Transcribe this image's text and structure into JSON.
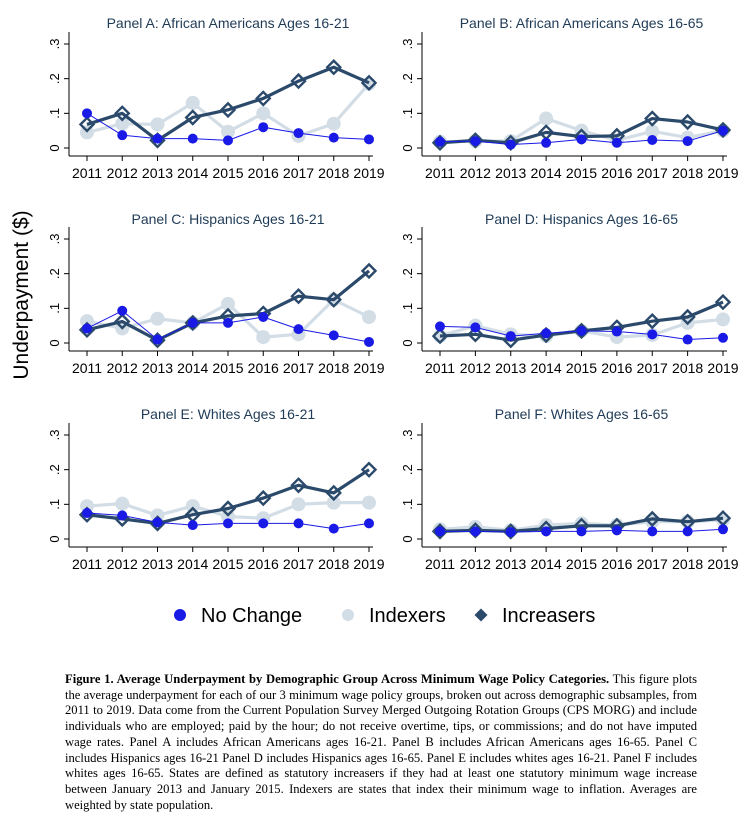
{
  "y_axis_label": "Underpayment ($)",
  "legend": [
    {
      "label": "No Change",
      "color": "#1a1ae6",
      "marker": "circle"
    },
    {
      "label": "Indexers",
      "color": "#d3dde6",
      "marker": "circle"
    },
    {
      "label": "Increasers",
      "color": "#2b4a6b",
      "marker": "diamond"
    }
  ],
  "caption": {
    "title": "Figure 1. Average Underpayment by Demographic Group Across Minimum Wage Policy Categories.",
    "body": "This figure plots the average underpayment for each of our 3 minimum wage policy groups, broken out across demographic subsamples, from 2011 to 2019. Data come from the Current Population Survey Merged Outgoing Rotation Groups (CPS MORG) and include individuals who are employed; paid by the hour; do not receive overtime, tips, or commissions; and do not have imputed wage rates. Panel A includes African Americans ages 16-21. Panel B includes African Americans ages 16-65. Panel C includes Hispanics ages 16-21 Panel D includes Hispanics ages 16-65. Panel E includes whites ages 16-21. Panel F includes whites ages 16-65. States are defined as statutory increasers if they had at least one statutory minimum wage increase between January 2013 and January 2015. Indexers are states that index their minimum wage to inflation. Averages are weighted by state population."
  },
  "chart_data": [
    {
      "type": "line",
      "title": "Panel A: African Americans Ages 16-21",
      "x": [
        2011,
        2012,
        2013,
        2014,
        2015,
        2016,
        2017,
        2018,
        2019
      ],
      "yticks": [
        "0",
        ".1",
        ".2",
        ".3"
      ],
      "ylim": [
        0,
        0.33
      ],
      "series": [
        {
          "name": "No Change",
          "values": [
            0.1,
            0.037,
            0.027,
            0.027,
            0.022,
            0.06,
            0.043,
            0.03,
            0.025
          ]
        },
        {
          "name": "Indexers",
          "values": [
            0.045,
            0.07,
            0.068,
            0.13,
            0.047,
            0.1,
            0.035,
            0.07,
            0.185
          ]
        },
        {
          "name": "Increasers",
          "values": [
            0.068,
            0.1,
            0.022,
            0.088,
            0.11,
            0.143,
            0.193,
            0.233,
            0.188
          ]
        }
      ]
    },
    {
      "type": "line",
      "title": "Panel B: African Americans Ages 16-65",
      "x": [
        2011,
        2012,
        2013,
        2014,
        2015,
        2016,
        2017,
        2018,
        2019
      ],
      "yticks": [
        "0",
        ".1",
        ".2",
        ".3"
      ],
      "ylim": [
        0,
        0.33
      ],
      "series": [
        {
          "name": "No Change",
          "values": [
            0.018,
            0.02,
            0.01,
            0.015,
            0.025,
            0.015,
            0.023,
            0.02,
            0.05
          ]
        },
        {
          "name": "Indexers",
          "values": [
            0.018,
            0.02,
            0.02,
            0.085,
            0.05,
            0.022,
            0.048,
            0.03,
            0.05
          ]
        },
        {
          "name": "Increasers",
          "values": [
            0.015,
            0.022,
            0.015,
            0.045,
            0.033,
            0.035,
            0.085,
            0.075,
            0.052
          ]
        }
      ]
    },
    {
      "type": "line",
      "title": "Panel C: Hispanics Ages 16-21",
      "x": [
        2011,
        2012,
        2013,
        2014,
        2015,
        2016,
        2017,
        2018,
        2019
      ],
      "yticks": [
        "0",
        ".1",
        ".2",
        ".3"
      ],
      "ylim": [
        0,
        0.33
      ],
      "series": [
        {
          "name": "No Change",
          "values": [
            0.042,
            0.093,
            0.01,
            0.058,
            0.058,
            0.075,
            0.04,
            0.022,
            0.003
          ]
        },
        {
          "name": "Indexers",
          "values": [
            0.063,
            0.042,
            0.07,
            0.058,
            0.113,
            0.017,
            0.025,
            0.125,
            0.075
          ]
        },
        {
          "name": "Increasers",
          "values": [
            0.038,
            0.062,
            0.008,
            0.058,
            0.078,
            0.085,
            0.135,
            0.125,
            0.208
          ]
        }
      ]
    },
    {
      "type": "line",
      "title": "Panel D: Hispanics Ages 16-65",
      "x": [
        2011,
        2012,
        2013,
        2014,
        2015,
        2016,
        2017,
        2018,
        2019
      ],
      "yticks": [
        "0",
        ".1",
        ".2",
        ".3"
      ],
      "ylim": [
        0,
        0.33
      ],
      "series": [
        {
          "name": "No Change",
          "values": [
            0.048,
            0.045,
            0.02,
            0.028,
            0.035,
            0.033,
            0.025,
            0.01,
            0.015
          ]
        },
        {
          "name": "Indexers",
          "values": [
            0.02,
            0.05,
            0.025,
            0.02,
            0.035,
            0.017,
            0.023,
            0.058,
            0.068
          ]
        },
        {
          "name": "Increasers",
          "values": [
            0.02,
            0.025,
            0.008,
            0.023,
            0.035,
            0.045,
            0.063,
            0.075,
            0.118
          ]
        }
      ]
    },
    {
      "type": "line",
      "title": "Panel E: Whites Ages 16-21",
      "x": [
        2011,
        2012,
        2013,
        2014,
        2015,
        2016,
        2017,
        2018,
        2019
      ],
      "yticks": [
        "0",
        ".1",
        ".2",
        ".3"
      ],
      "ylim": [
        0,
        0.33
      ],
      "series": [
        {
          "name": "No Change",
          "values": [
            0.075,
            0.068,
            0.048,
            0.04,
            0.045,
            0.045,
            0.045,
            0.03,
            0.045
          ]
        },
        {
          "name": "Indexers",
          "values": [
            0.095,
            0.102,
            0.068,
            0.095,
            0.065,
            0.06,
            0.1,
            0.105,
            0.105
          ]
        },
        {
          "name": "Increasers",
          "values": [
            0.07,
            0.058,
            0.045,
            0.07,
            0.088,
            0.118,
            0.155,
            0.133,
            0.2
          ]
        }
      ]
    },
    {
      "type": "line",
      "title": "Panel F: Whites Ages 16-65",
      "x": [
        2011,
        2012,
        2013,
        2014,
        2015,
        2016,
        2017,
        2018,
        2019
      ],
      "yticks": [
        "0",
        ".1",
        ".2",
        ".3"
      ],
      "ylim": [
        0,
        0.33
      ],
      "series": [
        {
          "name": "No Change",
          "values": [
            0.022,
            0.022,
            0.02,
            0.022,
            0.022,
            0.025,
            0.022,
            0.022,
            0.028
          ]
        },
        {
          "name": "Indexers",
          "values": [
            0.028,
            0.035,
            0.025,
            0.04,
            0.045,
            0.04,
            0.05,
            0.05,
            0.055
          ]
        },
        {
          "name": "Increasers",
          "values": [
            0.022,
            0.025,
            0.022,
            0.03,
            0.038,
            0.038,
            0.058,
            0.05,
            0.06
          ]
        }
      ]
    }
  ]
}
